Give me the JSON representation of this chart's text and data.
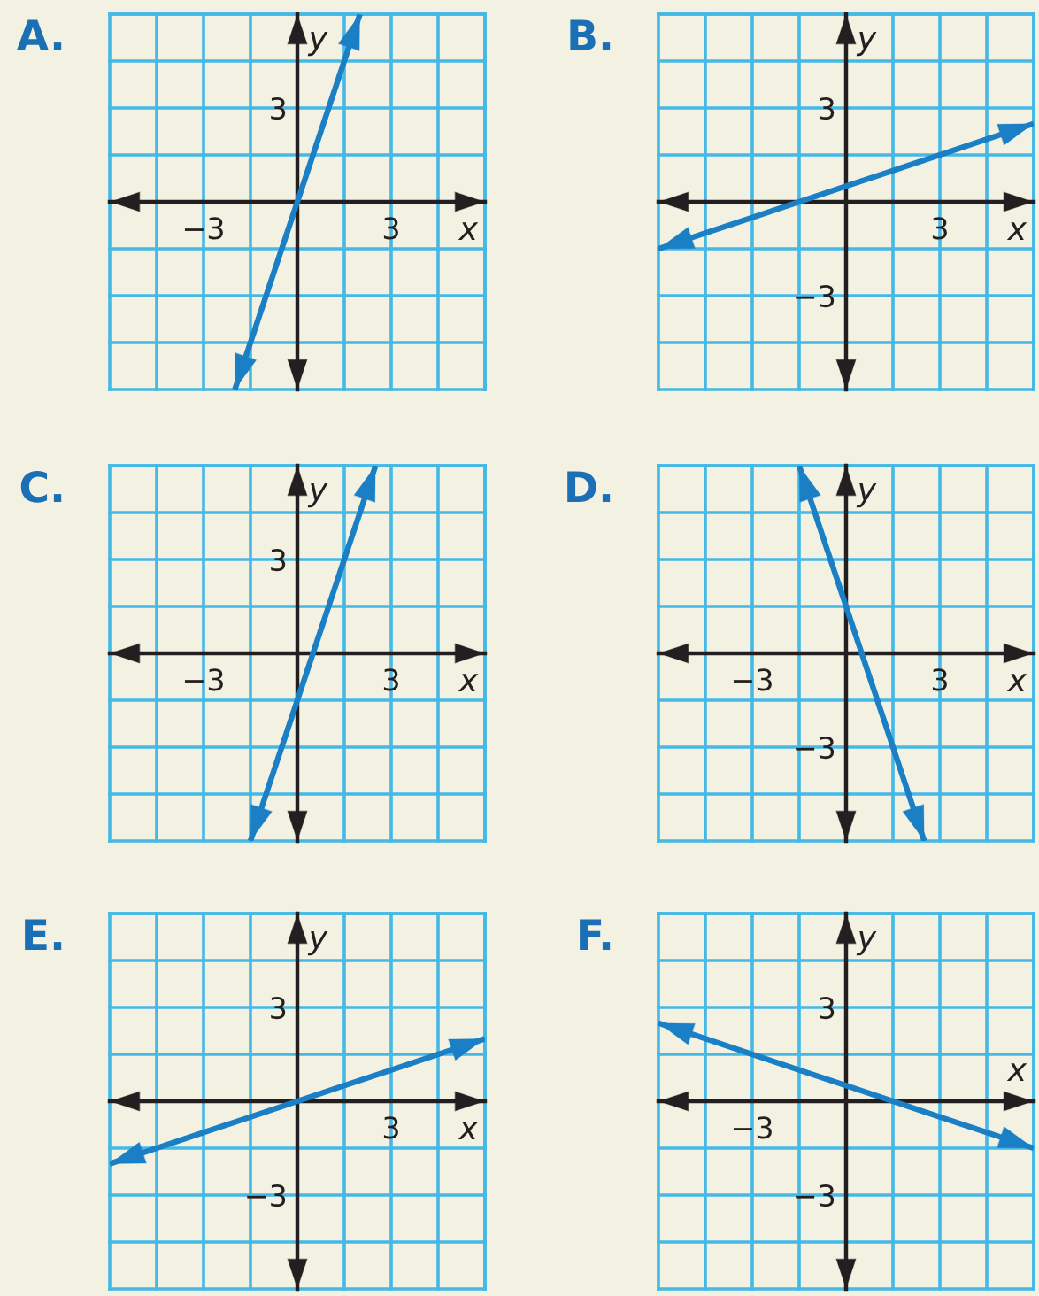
{
  "chart_data": [
    {
      "type": "line",
      "title": "A.",
      "xlabel": "x",
      "ylabel": "y",
      "orientation": "horizontal",
      "categories": [
        null,
        null,
        "3",
        null,
        null,
        null,
        null,
        null,
        null
      ],
      "xlim": [
        -6,
        6
      ],
      "grid": true,
      "xticks": [
        {
          "value": -6,
          "label": null
        },
        {
          "value": -4.5,
          "label": null
        },
        {
          "value": -3,
          "label": "−3"
        },
        {
          "value": -1.5,
          "label": null
        },
        {
          "value": 0,
          "label": null
        },
        {
          "value": 1.5,
          "label": null
        },
        {
          "value": 3,
          "label": "3"
        },
        {
          "value": 4.5,
          "label": null
        },
        {
          "value": 6,
          "label": null
        }
      ],
      "values": [
        2,
        1.5,
        1,
        0.5,
        0,
        -0.5,
        -1,
        -1.5,
        -2
      ],
      "color": "#1a7fc4"
    },
    {
      "type": "line",
      "title": "B.",
      "xlabel": "x",
      "ylabel": "y",
      "categories": [
        null,
        null,
        null,
        null,
        null,
        null,
        "3",
        null,
        null
      ],
      "ylim": [
        -6,
        6
      ],
      "grid": true,
      "yticks": [
        {
          "value": -6,
          "label": null
        },
        {
          "value": -4.5,
          "label": null
        },
        {
          "value": -3,
          "label": "−3"
        },
        {
          "value": -1.5,
          "label": null
        },
        {
          "value": 0,
          "label": null
        },
        {
          "value": 1.5,
          "label": null
        },
        {
          "value": 3,
          "label": "3"
        },
        {
          "value": 4.5,
          "label": null
        },
        {
          "value": 6,
          "label": null
        }
      ],
      "values": [
        -1.5,
        -1,
        -0.5,
        0,
        0.5,
        1,
        1.5,
        2,
        2.5
      ],
      "color": "#1a7fc4"
    },
    {
      "type": "line",
      "title": "C.",
      "xlabel": "x",
      "ylabel": "y",
      "orientation": "horizontal",
      "categories": [
        null,
        null,
        "3",
        null,
        null,
        null,
        null,
        null,
        null
      ],
      "xlim": [
        -6,
        6
      ],
      "grid": true,
      "xticks": [
        {
          "value": -6,
          "label": null
        },
        {
          "value": -4.5,
          "label": null
        },
        {
          "value": -3,
          "label": "−3"
        },
        {
          "value": -1.5,
          "label": null
        },
        {
          "value": 0,
          "label": null
        },
        {
          "value": 1.5,
          "label": null
        },
        {
          "value": 3,
          "label": "3"
        },
        {
          "value": 4.5,
          "label": null
        },
        {
          "value": 6,
          "label": null
        }
      ],
      "values": [
        2.5,
        2,
        1.5,
        1,
        0.5,
        0,
        -0.5,
        -1,
        -1.5
      ],
      "color": "#1a7fc4"
    },
    {
      "type": "line",
      "title": "D.",
      "xlabel": "x",
      "ylabel": "y",
      "orientation": "horizontal",
      "categories": [
        null,
        null,
        null,
        null,
        null,
        null,
        "−3",
        null,
        null
      ],
      "xlim": [
        -6,
        6
      ],
      "grid": true,
      "xticks": [
        {
          "value": -6,
          "label": null
        },
        {
          "value": -4.5,
          "label": null
        },
        {
          "value": -3,
          "label": "−3"
        },
        {
          "value": -1.5,
          "label": null
        },
        {
          "value": 0,
          "label": null
        },
        {
          "value": 1.5,
          "label": null
        },
        {
          "value": 3,
          "label": "3"
        },
        {
          "value": 4.5,
          "label": null
        },
        {
          "value": 6,
          "label": null
        }
      ],
      "values": [
        -1.5,
        -1,
        -0.5,
        0,
        0.5,
        1,
        1.5,
        2,
        2.5
      ],
      "color": "#1a7fc4"
    },
    {
      "type": "line",
      "title": "E.",
      "xlabel": "x",
      "ylabel": "y",
      "categories": [
        null,
        null,
        null,
        null,
        null,
        null,
        "3",
        null,
        null
      ],
      "ylim": [
        -6,
        6
      ],
      "grid": true,
      "yticks": [
        {
          "value": -6,
          "label": null
        },
        {
          "value": -4.5,
          "label": null
        },
        {
          "value": -3,
          "label": "−3"
        },
        {
          "value": -1.5,
          "label": null
        },
        {
          "value": 0,
          "label": null
        },
        {
          "value": 1.5,
          "label": null
        },
        {
          "value": 3,
          "label": "3"
        },
        {
          "value": 4.5,
          "label": null
        },
        {
          "value": 6,
          "label": null
        }
      ],
      "values": [
        -2,
        -1.5,
        -1,
        -0.5,
        0,
        0.5,
        1,
        1.5,
        2
      ],
      "color": "#1a7fc4"
    },
    {
      "type": "line",
      "title": "F.",
      "xlabel": "x",
      "ylabel": "y",
      "categories": [
        null,
        null,
        "−3",
        null,
        null,
        null,
        null,
        null,
        null
      ],
      "ylim": [
        -6,
        6
      ],
      "grid": true,
      "yticks": [
        {
          "value": -6,
          "label": null
        },
        {
          "value": -4.5,
          "label": null
        },
        {
          "value": -3,
          "label": "−3"
        },
        {
          "value": -1.5,
          "label": null
        },
        {
          "value": 0,
          "label": null
        },
        {
          "value": 1.5,
          "label": null
        },
        {
          "value": 3,
          "label": "3"
        },
        {
          "value": 4.5,
          "label": null
        },
        {
          "value": 6,
          "label": null
        }
      ],
      "values": [
        2.5,
        2,
        1.5,
        1,
        0.5,
        0,
        -0.5,
        -1,
        -1.5
      ],
      "color": "#1a7fc4"
    }
  ]
}
